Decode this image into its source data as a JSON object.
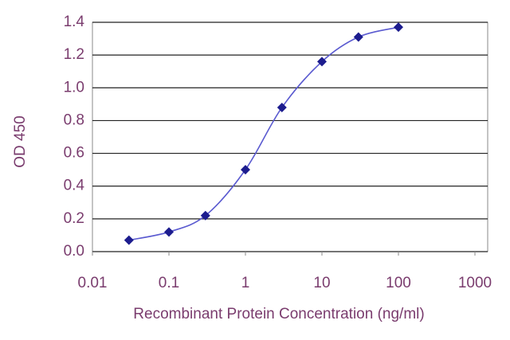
{
  "chart_data": {
    "type": "line",
    "x_label": "Recombinant Protein Concentration (ng/ml)",
    "y_label": "OD 450",
    "x": [
      0.03,
      0.1,
      0.3,
      1,
      3,
      10,
      30,
      100
    ],
    "values": [
      0.07,
      0.12,
      0.22,
      0.5,
      0.88,
      1.16,
      1.31,
      1.37
    ],
    "color": "#1c1c8e",
    "line_color": "#5a5ad0",
    "xlog": true,
    "xlim": [
      0.01,
      1000
    ],
    "xticks": [
      0.01,
      0.1,
      1,
      10,
      100,
      1000
    ],
    "ylim": [
      0,
      1.4
    ],
    "yticks": [
      {
        "value": 0,
        "label": "0.0"
      },
      {
        "value": 0.2,
        "label": "0.2"
      },
      {
        "value": 0.4,
        "label": "0.4"
      },
      {
        "value": 0.6,
        "label": "0.6"
      },
      {
        "value": 0.8,
        "label": "0.8"
      },
      {
        "value": 1.0,
        "label": "1.0"
      },
      {
        "value": 1.2,
        "label": "1.2"
      },
      {
        "value": 1.4,
        "label": "1.4"
      }
    ],
    "grid": true
  }
}
